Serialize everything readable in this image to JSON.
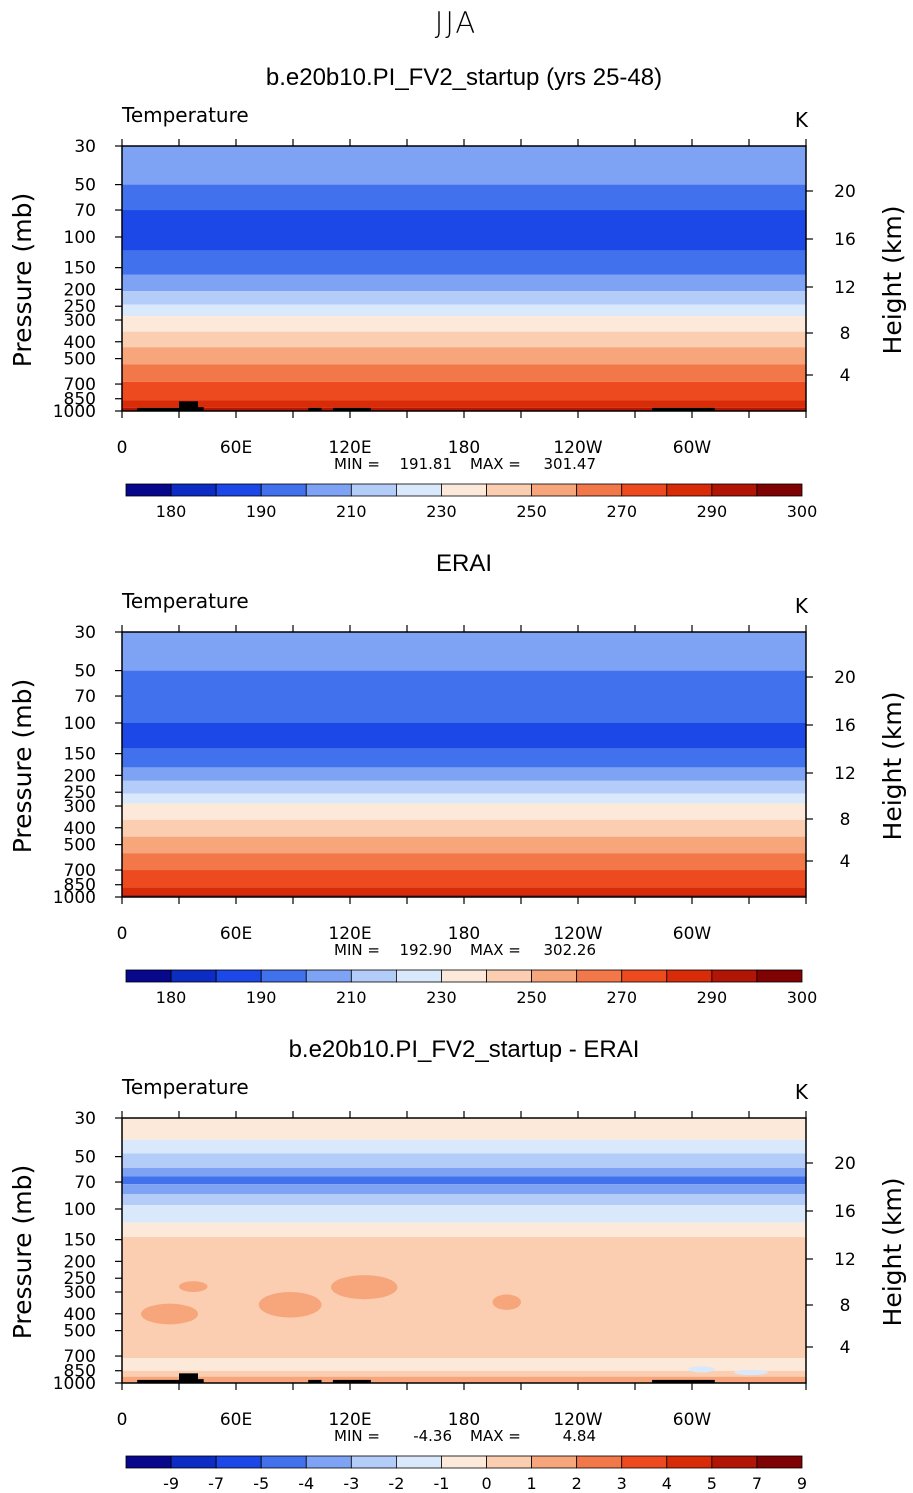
{
  "season": "JJA",
  "chart_data": [
    {
      "type": "heatmap",
      "title": "b.e20b10.PI_FV2_startup (yrs 25-48)",
      "field_label": "Temperature",
      "units": "K",
      "xlabel": "",
      "ylabel": "Pressure (mb)",
      "y2label": "Height (km)",
      "y_scale": "log",
      "ylim": [
        1000,
        30
      ],
      "xlim": [
        0,
        360
      ],
      "x_ticks": [
        "0",
        "60E",
        "120E",
        "180",
        "120W",
        "60W"
      ],
      "y_ticks": [
        "30",
        "50",
        "70",
        "100",
        "150",
        "200",
        "250",
        "300",
        "400",
        "500",
        "700",
        "850",
        "1000"
      ],
      "y2_ticks": [
        "20",
        "16",
        "12",
        "8",
        "4"
      ],
      "stats": {
        "min_label": "MIN =",
        "min": "191.81",
        "max_label": "MAX =",
        "max": "301.47"
      },
      "colorbar": {
        "labels": [
          "180",
          "190",
          "210",
          "230",
          "250",
          "270",
          "290",
          "300"
        ],
        "colors": [
          "#08088c",
          "#0c2cc4",
          "#1b48e6",
          "#4271ed",
          "#7ea3f5",
          "#b3cdf8",
          "#d9e9fb",
          "#fde9da",
          "#fbcdb1",
          "#f7a57a",
          "#f2784a",
          "#ee4a1f",
          "#d82c08",
          "#b01505",
          "#7f0303"
        ]
      },
      "layers": [
        {
          "p": 30,
          "c": 4
        },
        {
          "p": 50,
          "c": 3
        },
        {
          "p": 70,
          "c": 2
        },
        {
          "p": 120,
          "c": 3
        },
        {
          "p": 165,
          "c": 4
        },
        {
          "p": 205,
          "c": 5
        },
        {
          "p": 245,
          "c": 6
        },
        {
          "p": 285,
          "c": 7
        },
        {
          "p": 350,
          "c": 8
        },
        {
          "p": 430,
          "c": 9
        },
        {
          "p": 540,
          "c": 10
        },
        {
          "p": 680,
          "c": 11
        },
        {
          "p": 870,
          "c": 12
        },
        {
          "p": 960,
          "c": 13
        }
      ]
    },
    {
      "type": "heatmap",
      "title": "ERAI",
      "field_label": "Temperature",
      "units": "K",
      "xlabel": "",
      "ylabel": "Pressure (mb)",
      "y2label": "Height (km)",
      "y_scale": "log",
      "ylim": [
        1000,
        30
      ],
      "xlim": [
        0,
        360
      ],
      "x_ticks": [
        "0",
        "60E",
        "120E",
        "180",
        "120W",
        "60W"
      ],
      "y_ticks": [
        "30",
        "50",
        "70",
        "100",
        "150",
        "200",
        "250",
        "300",
        "400",
        "500",
        "700",
        "850",
        "1000"
      ],
      "y2_ticks": [
        "20",
        "16",
        "12",
        "8",
        "4"
      ],
      "stats": {
        "min_label": "MIN =",
        "min": "192.90",
        "max_label": "MAX =",
        "max": "302.26"
      },
      "colorbar": {
        "labels": [
          "180",
          "190",
          "210",
          "230",
          "250",
          "270",
          "290",
          "300"
        ],
        "colors": [
          "#08088c",
          "#0c2cc4",
          "#1b48e6",
          "#4271ed",
          "#7ea3f5",
          "#b3cdf8",
          "#d9e9fb",
          "#fde9da",
          "#fbcdb1",
          "#f7a57a",
          "#f2784a",
          "#ee4a1f",
          "#d82c08",
          "#b01505",
          "#7f0303"
        ]
      },
      "layers": [
        {
          "p": 30,
          "c": 4
        },
        {
          "p": 50,
          "c": 3
        },
        {
          "p": 100,
          "c": 2
        },
        {
          "p": 140,
          "c": 3
        },
        {
          "p": 180,
          "c": 4
        },
        {
          "p": 215,
          "c": 5
        },
        {
          "p": 255,
          "c": 6
        },
        {
          "p": 290,
          "c": 7
        },
        {
          "p": 360,
          "c": 8
        },
        {
          "p": 450,
          "c": 9
        },
        {
          "p": 560,
          "c": 10
        },
        {
          "p": 700,
          "c": 11
        },
        {
          "p": 880,
          "c": 12
        },
        {
          "p": 965,
          "c": 13
        }
      ]
    },
    {
      "type": "heatmap",
      "title": "b.e20b10.PI_FV2_startup - ERAI",
      "field_label": "Temperature",
      "units": "K",
      "xlabel": "",
      "ylabel": "Pressure (mb)",
      "y2label": "Height (km)",
      "y_scale": "log",
      "ylim": [
        1000,
        30
      ],
      "xlim": [
        0,
        360
      ],
      "x_ticks": [
        "0",
        "60E",
        "120E",
        "180",
        "120W",
        "60W"
      ],
      "y_ticks": [
        "30",
        "50",
        "70",
        "100",
        "150",
        "200",
        "250",
        "300",
        "400",
        "500",
        "700",
        "850",
        "1000"
      ],
      "y2_ticks": [
        "20",
        "16",
        "12",
        "8",
        "4"
      ],
      "stats": {
        "min_label": "MIN =",
        "min": "-4.36",
        "max_label": "MAX =",
        "max": "4.84"
      },
      "colorbar": {
        "labels": [
          "-9",
          "-7",
          "-5",
          "-4",
          "-3",
          "-2",
          "-1",
          "0",
          "1",
          "2",
          "3",
          "4",
          "5",
          "7",
          "9"
        ],
        "colors": [
          "#08088c",
          "#0c2cc4",
          "#1b48e6",
          "#4271ed",
          "#7ea3f5",
          "#b3cdf8",
          "#d9e9fb",
          "#fde9da",
          "#fbcdb1",
          "#f7a57a",
          "#f2784a",
          "#ee4a1f",
          "#d82c08",
          "#b01505",
          "#7f0303"
        ]
      },
      "layers": [
        {
          "p": 30,
          "c": 7
        },
        {
          "p": 40,
          "c": 6
        },
        {
          "p": 48,
          "c": 5
        },
        {
          "p": 58,
          "c": 4
        },
        {
          "p": 65,
          "c": 3
        },
        {
          "p": 72,
          "c": 4
        },
        {
          "p": 82,
          "c": 5
        },
        {
          "p": 95,
          "c": 6
        },
        {
          "p": 120,
          "c": 7
        },
        {
          "p": 145,
          "c": 8
        },
        {
          "p": 720,
          "c": 7
        },
        {
          "p": 850,
          "c": 8
        },
        {
          "p": 920,
          "c": 9
        }
      ],
      "patches": [
        {
          "lon": [
            30,
            45
          ],
          "p": [
            260,
            300
          ],
          "c": 9
        },
        {
          "lon": [
            72,
            105
          ],
          "p": [
            300,
            420
          ],
          "c": 9
        },
        {
          "lon": [
            110,
            145
          ],
          "p": [
            240,
            330
          ],
          "c": 9
        },
        {
          "lon": [
            195,
            210
          ],
          "p": [
            310,
            380
          ],
          "c": 9
        },
        {
          "lon": [
            10,
            40
          ],
          "p": [
            350,
            460
          ],
          "c": 9
        },
        {
          "lon": [
            298,
            312
          ],
          "p": [
            800,
            870
          ],
          "c": 6
        },
        {
          "lon": [
            322,
            340
          ],
          "p": [
            840,
            900
          ],
          "c": 6
        }
      ]
    }
  ],
  "topography": [
    {
      "lon": [
        8,
        30
      ],
      "p": 960
    },
    {
      "lon": [
        30,
        40
      ],
      "p": 880
    },
    {
      "lon": [
        40,
        43
      ],
      "p": 950
    },
    {
      "lon": [
        98,
        105
      ],
      "p": 960
    },
    {
      "lon": [
        111,
        131
      ],
      "p": 960
    },
    {
      "lon": [
        279,
        312
      ],
      "p": 960
    }
  ]
}
